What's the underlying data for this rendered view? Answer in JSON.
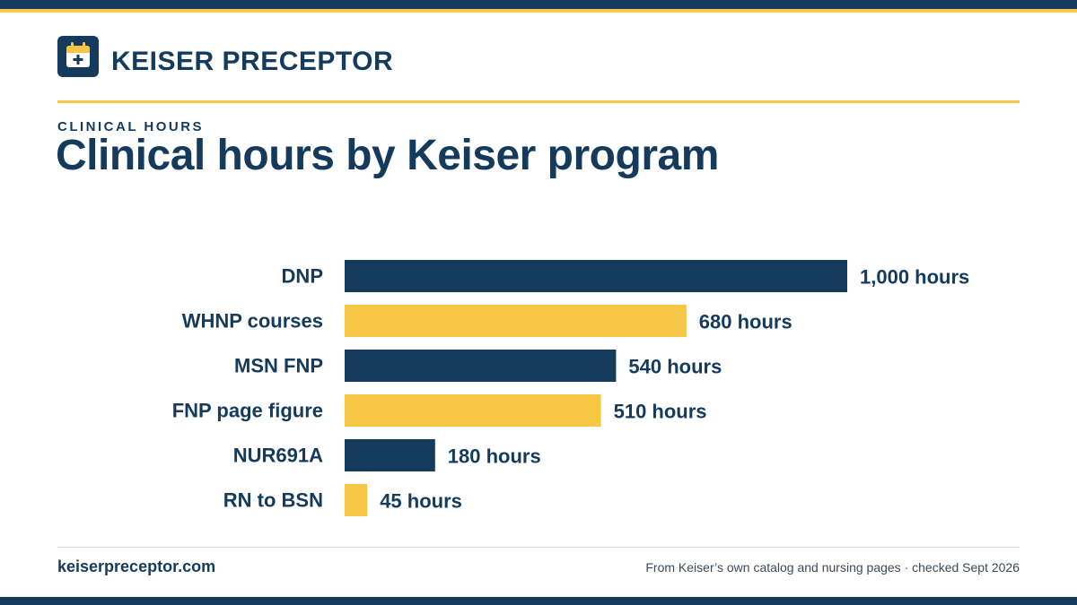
{
  "brand": {
    "name": "KEISER PRECEPTOR",
    "logo_icon": "calendar-plus-icon"
  },
  "colors": {
    "navy": "#143a5c",
    "gold": "#f6c744",
    "rule": "#d5d9de"
  },
  "header": {
    "eyebrow": "CLINICAL HOURS",
    "title": "Clinical hours by Keiser program"
  },
  "chart_data": {
    "type": "bar",
    "orientation": "horizontal",
    "title": "Clinical hours by Keiser program",
    "categories": [
      "DNP",
      "WHNP courses",
      "MSN FNP",
      "FNP page figure",
      "NUR691A",
      "RN to BSN"
    ],
    "values": [
      1000,
      680,
      540,
      510,
      180,
      45
    ],
    "value_labels": [
      "1,000 hours",
      "680 hours",
      "540 hours",
      "510 hours",
      "180 hours",
      "45 hours"
    ],
    "bar_colors": [
      "#143a5c",
      "#f6c744",
      "#143a5c",
      "#f6c744",
      "#143a5c",
      "#f6c744"
    ],
    "xlim": [
      0,
      1000
    ],
    "grid": false,
    "legend": "none"
  },
  "footer": {
    "site": "keiserpreceptor.com",
    "source": "From Keiser’s own catalog and nursing pages · checked Sept 2026"
  }
}
